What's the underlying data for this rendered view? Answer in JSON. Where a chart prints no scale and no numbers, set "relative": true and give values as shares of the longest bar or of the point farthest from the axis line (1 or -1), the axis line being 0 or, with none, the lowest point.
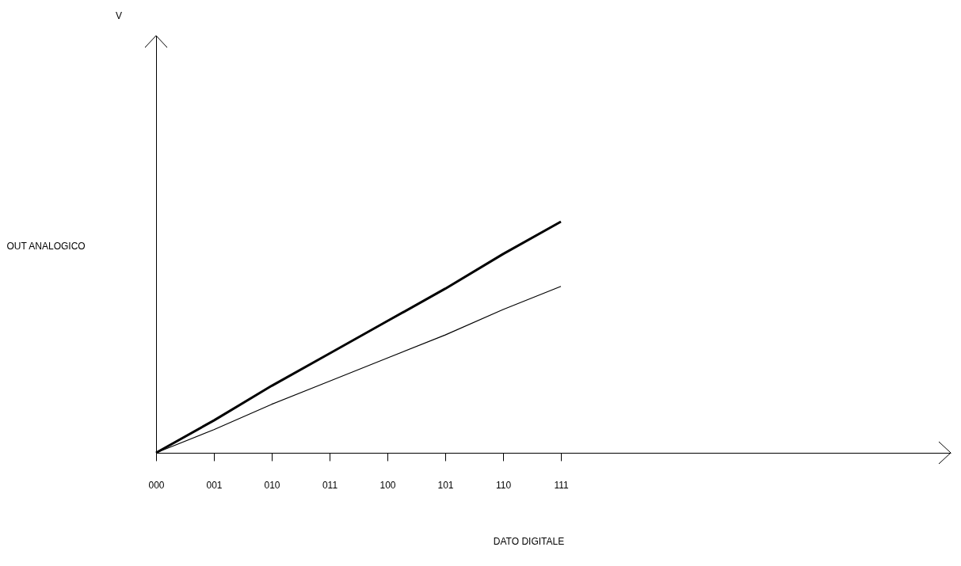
{
  "chart_data": {
    "type": "line",
    "relative": true,
    "xlabel": "DATO DIGITALE",
    "ylabel": "OUT ANALOGICO",
    "annotations": [
      "V"
    ],
    "categories": [
      "000",
      "001",
      "010",
      "011",
      "100",
      "101",
      "110",
      "111"
    ],
    "series": [
      {
        "color": "#000000",
        "values": [
          0,
          0.14,
          0.29,
          0.43,
          0.57,
          0.71,
          0.86,
          1
        ]
      },
      {
        "color": "#000000",
        "values": [
          0,
          0.1,
          0.21,
          0.31,
          0.41,
          0.51,
          0.62,
          0.72
        ]
      }
    ]
  }
}
